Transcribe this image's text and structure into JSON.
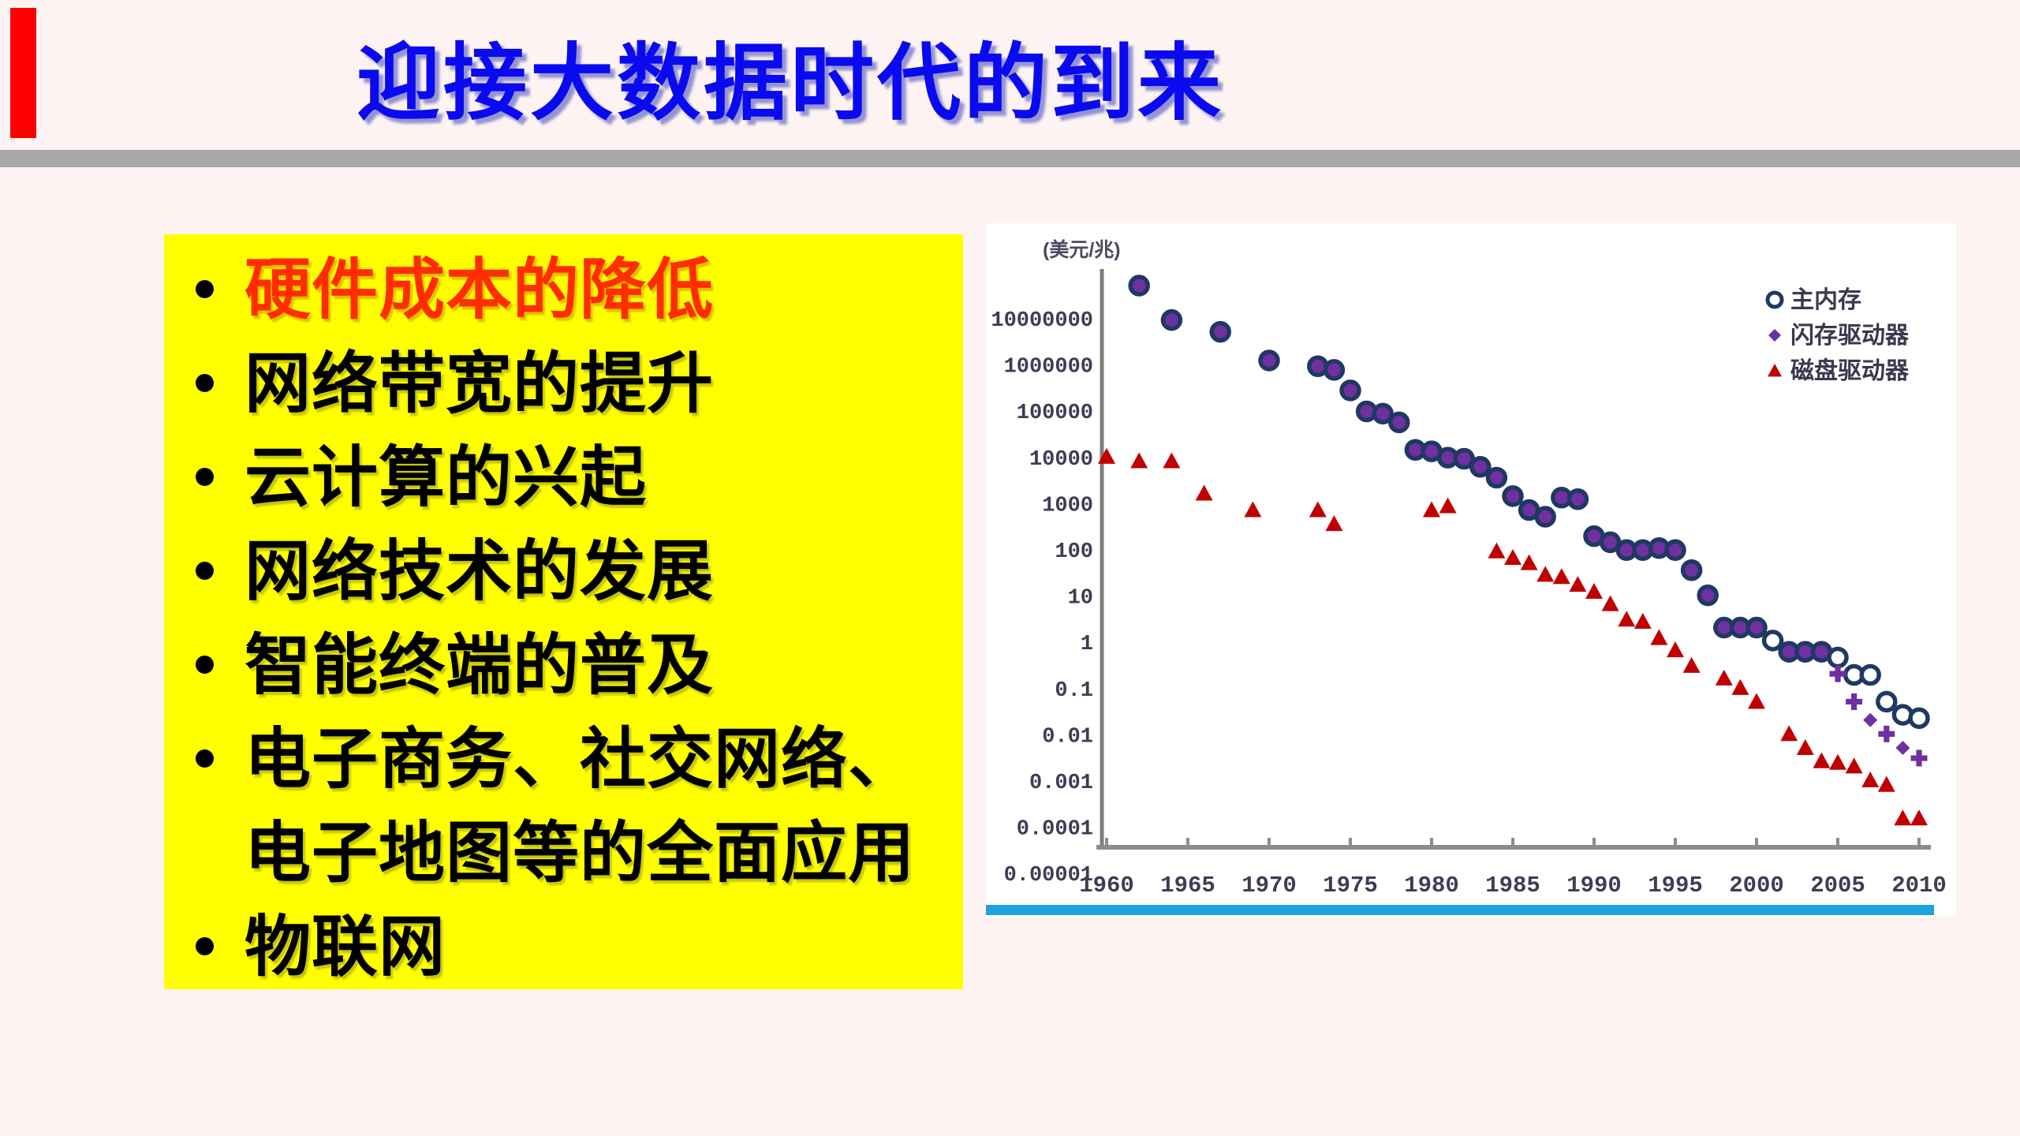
{
  "slide": {
    "title": "迎接大数据时代的到来",
    "bullets": [
      {
        "label": "硬件成本的降低",
        "highlight": true
      },
      {
        "label": "网络带宽的提升",
        "highlight": false
      },
      {
        "label": "云计算的兴起",
        "highlight": false
      },
      {
        "label": "网络技术的发展",
        "highlight": false
      },
      {
        "label": "智能终端的普及",
        "highlight": false
      },
      {
        "label": "电子商务、社交网络、",
        "highlight": false,
        "continuation": "电子地图等的全面应用"
      },
      {
        "label": "物联网",
        "highlight": false
      }
    ],
    "colors": {
      "background": "#fdf3f2",
      "accent_bar": "#fe0000",
      "title_blue": "#0a0af0",
      "divider_gray": "#a7a7a7",
      "panel_yellow": "#ffff00",
      "highlight_red": "#ff2d00",
      "chart_bottom_bar": "#1ba2df"
    }
  },
  "chart_data": {
    "type": "scatter",
    "title": "",
    "ylabel": "(美元/兆)",
    "xlabel": "",
    "y_scale": "log",
    "x_range": [
      1959,
      2011
    ],
    "y_range": [
      3e-05,
      80000000
    ],
    "grid": false,
    "legend_position": "top-right",
    "x_ticks": [
      1960,
      1965,
      1970,
      1975,
      1980,
      1985,
      1990,
      1995,
      2000,
      2005,
      2010
    ],
    "y_ticks": [
      10000000,
      1000000,
      100000,
      10000,
      1000,
      100,
      10,
      1,
      0.1,
      0.01,
      0.001,
      0.0001,
      1e-05
    ],
    "legend": [
      {
        "label": "主内存",
        "marker": "circle-open",
        "color": "#1f3864"
      },
      {
        "label": "闪存驱动器",
        "marker": "diamond",
        "color": "#7030a0"
      },
      {
        "label": "磁盘驱动器",
        "marker": "triangle",
        "color": "#c00000"
      }
    ],
    "series": [
      {
        "name": "磁盘驱动器",
        "marker": "triangle",
        "color": "#c00000",
        "points": [
          [
            1960,
            10000
          ],
          [
            1962,
            8000
          ],
          [
            1964,
            8000
          ],
          [
            1966,
            1600
          ],
          [
            1969,
            700
          ],
          [
            1973,
            700
          ],
          [
            1974,
            350
          ],
          [
            1980,
            700
          ],
          [
            1981,
            850
          ],
          [
            1984,
            90
          ],
          [
            1985,
            65
          ],
          [
            1986,
            50
          ],
          [
            1987,
            28
          ],
          [
            1988,
            25
          ],
          [
            1989,
            17
          ],
          [
            1990,
            12
          ],
          [
            1991,
            6.5
          ],
          [
            1992,
            3
          ],
          [
            1993,
            2.7
          ],
          [
            1994,
            1.2
          ],
          [
            1995,
            0.65
          ],
          [
            1996,
            0.3
          ],
          [
            1998,
            0.16
          ],
          [
            1999,
            0.1
          ],
          [
            2000,
            0.05
          ],
          [
            2002,
            0.01
          ],
          [
            2003,
            0.005
          ],
          [
            2004,
            0.0026
          ],
          [
            2005,
            0.0024
          ],
          [
            2006,
            0.002
          ],
          [
            2007,
            0.001
          ],
          [
            2008,
            0.0008
          ],
          [
            2009,
            0.00015
          ],
          [
            2010,
            0.00015
          ]
        ]
      },
      {
        "name": "主内存",
        "marker": "circle",
        "ring_color": "#1f3864",
        "fill_color": "#7030a0",
        "points": [
          [
            1962,
            50000000,
            "f"
          ],
          [
            1964,
            9000000,
            "f"
          ],
          [
            1967,
            5000000,
            "f"
          ],
          [
            1970,
            1200000,
            "f"
          ],
          [
            1973,
            900000,
            "f"
          ],
          [
            1974,
            750000,
            "f"
          ],
          [
            1975,
            270000,
            "f"
          ],
          [
            1976,
            95000,
            "f"
          ],
          [
            1977,
            85000,
            "f"
          ],
          [
            1978,
            55000,
            "f"
          ],
          [
            1979,
            14000,
            "f"
          ],
          [
            1980,
            13000,
            "f"
          ],
          [
            1981,
            9500,
            "f"
          ],
          [
            1982,
            9000,
            "f"
          ],
          [
            1983,
            6000,
            "f"
          ],
          [
            1984,
            3500,
            "f"
          ],
          [
            1985,
            1400,
            "f"
          ],
          [
            1986,
            700,
            "f"
          ],
          [
            1987,
            500,
            "f"
          ],
          [
            1988,
            1300,
            "f"
          ],
          [
            1989,
            1200,
            "f"
          ],
          [
            1990,
            190,
            "f"
          ],
          [
            1991,
            140,
            "f"
          ],
          [
            1992,
            95,
            "f"
          ],
          [
            1993,
            95,
            "f"
          ],
          [
            1994,
            105,
            "f"
          ],
          [
            1995,
            95,
            "f"
          ],
          [
            1996,
            35,
            "f"
          ],
          [
            1997,
            10,
            "f"
          ],
          [
            1998,
            2,
            "f"
          ],
          [
            1999,
            2,
            "f"
          ],
          [
            2000,
            2,
            "f"
          ],
          [
            2001,
            1.05,
            "o"
          ],
          [
            2002,
            0.6,
            "f"
          ],
          [
            2003,
            0.6,
            "f"
          ],
          [
            2004,
            0.6,
            "f"
          ],
          [
            2005,
            0.45,
            "o"
          ],
          [
            2006,
            0.19,
            "o"
          ],
          [
            2007,
            0.19,
            "o"
          ],
          [
            2008,
            0.05,
            "o"
          ],
          [
            2009,
            0.026,
            "o"
          ],
          [
            2010,
            0.022,
            "o"
          ]
        ]
      },
      {
        "name": "闪存驱动器",
        "marker": "diamond",
        "color": "#7030a0",
        "points": [
          [
            2005,
            0.2,
            "plus"
          ],
          [
            2006,
            0.05,
            "plus"
          ],
          [
            2007,
            0.02,
            "diamond"
          ],
          [
            2008,
            0.01,
            "plus"
          ],
          [
            2009,
            0.005,
            "diamond"
          ],
          [
            2010,
            0.003,
            "plus"
          ]
        ]
      }
    ]
  }
}
